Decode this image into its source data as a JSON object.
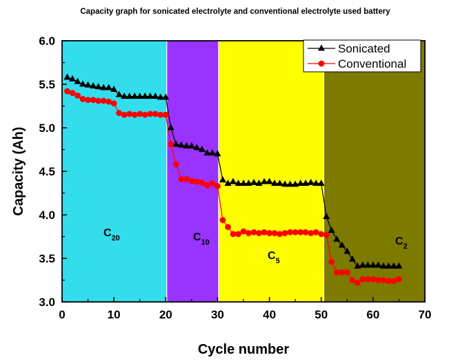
{
  "chart_data": {
    "type": "line",
    "title": "Capacity graph for sonicated  electrolyte and conventional electrolyte  used battery",
    "xlabel": "Cycle number",
    "ylabel": "Capacity (Ah)",
    "xlim": [
      0,
      70
    ],
    "ylim": [
      3.0,
      6.0
    ],
    "xticks": [
      "0",
      "10",
      "20",
      "30",
      "40",
      "50",
      "60",
      "70"
    ],
    "yticks": [
      "3.0",
      "3.5",
      "4.0",
      "4.5",
      "5.0",
      "5.5",
      "6.0"
    ],
    "grid": false,
    "legend_position": "top-right",
    "regions": [
      {
        "x_start": 0,
        "x_end": 20.2,
        "color": "#33ddec",
        "label": "C",
        "subscript": "20"
      },
      {
        "x_start": 20.2,
        "x_end": 30.2,
        "color": "#9933ff",
        "label": "C",
        "subscript": "10"
      },
      {
        "x_start": 30.2,
        "x_end": 50.5,
        "color": "#ffff00",
        "label": "C",
        "subscript": "5"
      },
      {
        "x_start": 50.5,
        "x_end": 70,
        "color": "#7d7a00",
        "label": "C",
        "subscript": "2"
      }
    ],
    "series": [
      {
        "name": "Sonicated",
        "color": "#000000",
        "marker": "triangle",
        "x": [
          1,
          2,
          3,
          4,
          5,
          6,
          7,
          8,
          9,
          10,
          11,
          12,
          13,
          14,
          15,
          16,
          17,
          18,
          19,
          20,
          21,
          22,
          23,
          24,
          25,
          26,
          27,
          28,
          29,
          30,
          31,
          32,
          33,
          34,
          35,
          36,
          37,
          38,
          39,
          40,
          41,
          42,
          43,
          44,
          45,
          46,
          47,
          48,
          49,
          50,
          51,
          52,
          53,
          54,
          55,
          56,
          57,
          58,
          59,
          60,
          61,
          62,
          63,
          64,
          65
        ],
        "values": [
          5.58,
          5.56,
          5.53,
          5.5,
          5.49,
          5.48,
          5.47,
          5.46,
          5.46,
          5.44,
          5.38,
          5.36,
          5.36,
          5.36,
          5.36,
          5.36,
          5.36,
          5.36,
          5.35,
          5.35,
          5.0,
          4.81,
          4.8,
          4.79,
          4.79,
          4.77,
          4.75,
          4.71,
          4.71,
          4.7,
          4.4,
          4.36,
          4.38,
          4.36,
          4.36,
          4.36,
          4.37,
          4.36,
          4.38,
          4.38,
          4.36,
          4.36,
          4.35,
          4.35,
          4.35,
          4.36,
          4.36,
          4.37,
          4.36,
          4.36,
          3.98,
          3.82,
          3.72,
          3.65,
          3.58,
          3.49,
          3.41,
          3.42,
          3.42,
          3.42,
          3.42,
          3.41,
          3.41,
          3.41,
          3.41
        ]
      },
      {
        "name": "Conventional",
        "color": "#ff0000",
        "marker": "circle",
        "x": [
          1,
          2,
          3,
          4,
          5,
          6,
          7,
          8,
          9,
          10,
          11,
          12,
          13,
          14,
          15,
          16,
          17,
          18,
          19,
          20,
          21,
          22,
          23,
          24,
          25,
          26,
          27,
          28,
          29,
          30,
          31,
          32,
          33,
          34,
          35,
          36,
          37,
          38,
          39,
          40,
          41,
          42,
          43,
          44,
          45,
          46,
          47,
          48,
          49,
          50,
          51,
          52,
          53,
          54,
          55,
          56,
          57,
          58,
          59,
          60,
          61,
          62,
          63,
          64,
          65
        ],
        "values": [
          5.42,
          5.4,
          5.37,
          5.33,
          5.32,
          5.32,
          5.31,
          5.31,
          5.3,
          5.28,
          5.17,
          5.15,
          5.16,
          5.15,
          5.16,
          5.15,
          5.16,
          5.16,
          5.15,
          5.15,
          4.81,
          4.58,
          4.41,
          4.41,
          4.39,
          4.38,
          4.37,
          4.34,
          4.36,
          4.33,
          3.94,
          3.86,
          3.78,
          3.78,
          3.81,
          3.79,
          3.8,
          3.79,
          3.8,
          3.79,
          3.79,
          3.78,
          3.79,
          3.8,
          3.8,
          3.8,
          3.8,
          3.79,
          3.8,
          3.78,
          3.77,
          3.46,
          3.34,
          3.34,
          3.34,
          3.25,
          3.22,
          3.26,
          3.26,
          3.26,
          3.25,
          3.25,
          3.24,
          3.24,
          3.26
        ]
      }
    ]
  }
}
